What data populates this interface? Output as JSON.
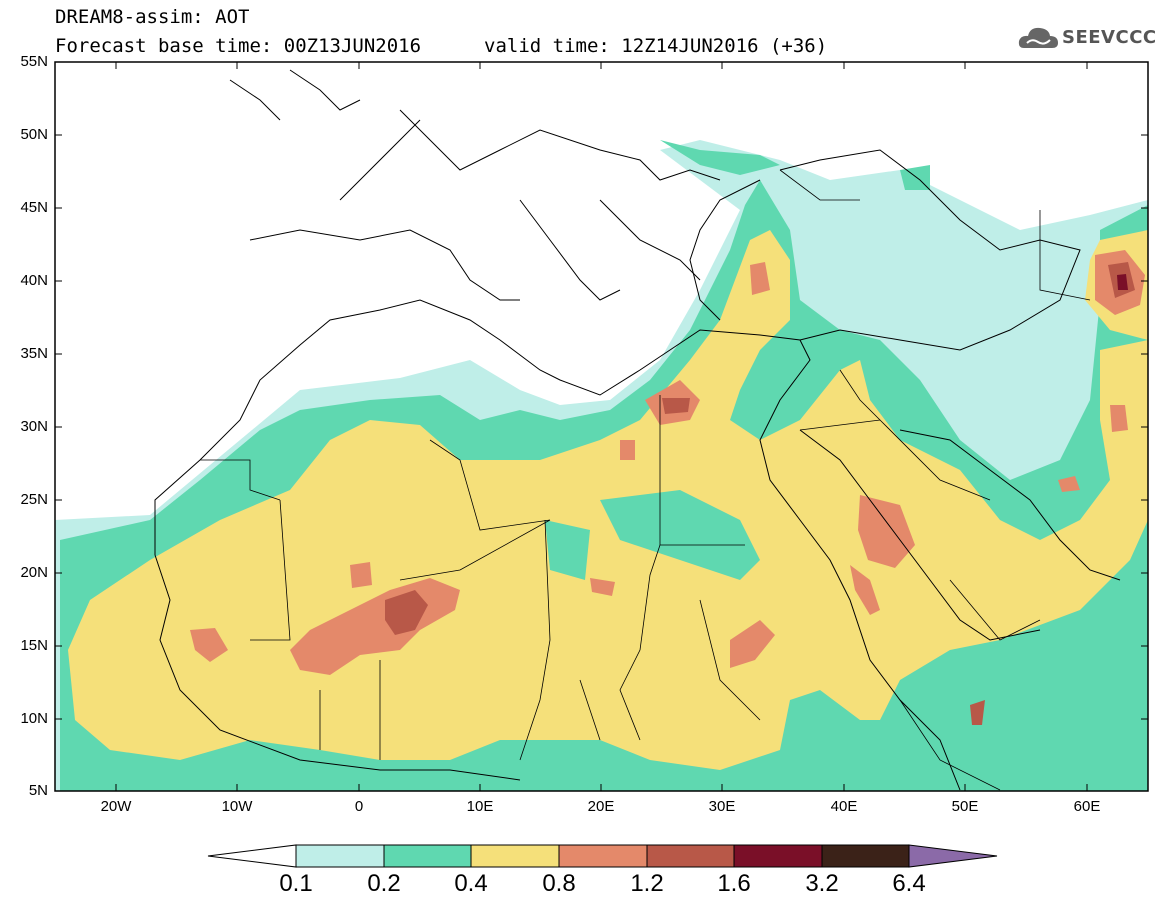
{
  "title": {
    "line1": "DREAM8-assim: AOT",
    "line2": "Forecast base time: 00Z13JUN2016",
    "valid": "valid time: 12Z14JUN2016 (+36)"
  },
  "logo": {
    "text": "SEEVCCC",
    "icon": "cloud-icon"
  },
  "map": {
    "variable": "AOT",
    "extent": {
      "lon": [
        -25,
        65
      ],
      "lat": [
        5,
        55
      ]
    },
    "lat_labels": [
      "55N",
      "50N",
      "45N",
      "40N",
      "35N",
      "30N",
      "25N",
      "20N",
      "15N",
      "10N",
      "5N"
    ],
    "lon_labels": [
      "20W",
      "10W",
      "0",
      "10E",
      "20E",
      "30E",
      "40E",
      "50E",
      "60E"
    ]
  },
  "colorbar": {
    "labels": [
      "0.1",
      "0.2",
      "0.4",
      "0.8",
      "1.2",
      "1.6",
      "3.2",
      "6.4"
    ],
    "colors": [
      "#ffffff",
      "#bfeee8",
      "#5fd8b0",
      "#f5e07a",
      "#e4896a",
      "#b85848",
      "#7a0f28",
      "#3b2218",
      "#8b6aa8"
    ]
  }
}
